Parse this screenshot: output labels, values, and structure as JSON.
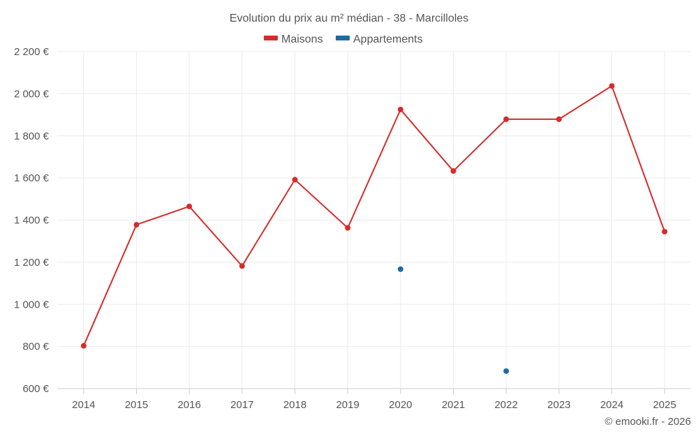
{
  "chart_data": {
    "type": "line",
    "title": "Evolution du prix au m² médian - 38 - Marcilloles",
    "categories": [
      "2014",
      "2015",
      "2016",
      "2017",
      "2018",
      "2019",
      "2020",
      "2021",
      "2022",
      "2023",
      "2024",
      "2025"
    ],
    "ylim": [
      600,
      2200
    ],
    "ytick_values": [
      600,
      800,
      1000,
      1200,
      1400,
      1600,
      1800,
      2000,
      2200
    ],
    "ytick_labels": [
      "600 €",
      "800 €",
      "1 000 €",
      "1 200 €",
      "1 400 €",
      "1 600 €",
      "1 800 €",
      "2 000 €",
      "2 200 €"
    ],
    "grid": true,
    "legend_position": "top-center",
    "series": [
      {
        "name": "Maisons",
        "color": "#d62b2b",
        "line": true,
        "values": [
          803,
          1378,
          1465,
          1182,
          1592,
          1363,
          1925,
          1633,
          1879,
          1879,
          2037,
          1345
        ]
      },
      {
        "name": "Appartements",
        "color": "#1f6aa5",
        "line": false,
        "values": [
          null,
          null,
          null,
          null,
          null,
          null,
          1167,
          null,
          683,
          null,
          null,
          null
        ]
      }
    ]
  },
  "credit": "© emooki.fr - 2026"
}
